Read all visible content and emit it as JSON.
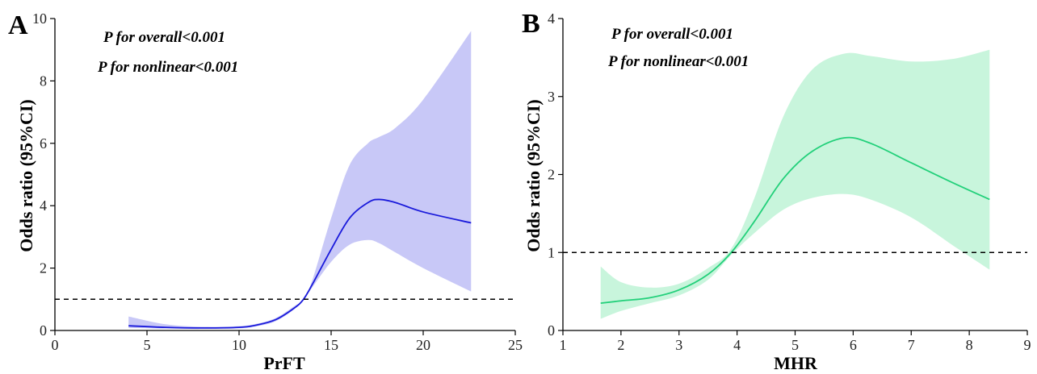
{
  "chart_data": [
    {
      "panel": "A",
      "type": "line",
      "title": "",
      "xlabel": "PrFT",
      "ylabel": "Odds ratio (95%CI)",
      "xlim": [
        0,
        25
      ],
      "ylim": [
        0,
        10
      ],
      "xticks": [
        0,
        5,
        10,
        15,
        20,
        25
      ],
      "yticks": [
        0,
        2,
        4,
        6,
        8,
        10
      ],
      "reference_line": 1,
      "annotations": [
        "P for overall<0.001",
        "P for nonlinear<0.001"
      ],
      "line_color": "#1a1adb",
      "band_color": "#c8c8f7",
      "series": [
        {
          "x": [
            4,
            6,
            8,
            10,
            11,
            12,
            13,
            13.5,
            14,
            15,
            16,
            17,
            17.6,
            18.5,
            20,
            22.6
          ],
          "y": [
            0.15,
            0.1,
            0.08,
            0.1,
            0.18,
            0.35,
            0.72,
            1.0,
            1.5,
            2.6,
            3.6,
            4.1,
            4.2,
            4.1,
            3.8,
            3.45
          ],
          "lower": [
            0.08,
            0.06,
            0.05,
            0.07,
            0.14,
            0.3,
            0.68,
            1.0,
            1.4,
            2.2,
            2.75,
            2.9,
            2.8,
            2.5,
            2.0,
            1.25
          ],
          "upper": [
            0.45,
            0.2,
            0.12,
            0.14,
            0.22,
            0.4,
            0.78,
            1.0,
            1.65,
            3.6,
            5.3,
            6.0,
            6.2,
            6.5,
            7.4,
            9.6
          ]
        }
      ]
    },
    {
      "panel": "B",
      "type": "line",
      "title": "",
      "xlabel": "MHR",
      "ylabel": "Odds ratio (95%CI)",
      "xlim": [
        1,
        9
      ],
      "ylim": [
        0,
        4
      ],
      "xticks": [
        1,
        2,
        3,
        4,
        5,
        6,
        7,
        8,
        9
      ],
      "yticks": [
        0,
        1,
        2,
        3,
        4
      ],
      "reference_line": 1,
      "annotations": [
        "P for overall<0.001",
        "P for nonlinear<0.001"
      ],
      "line_color": "#22d07a",
      "band_color": "#c8f5dc",
      "series": [
        {
          "x": [
            1.65,
            2.0,
            2.5,
            3.0,
            3.5,
            3.9,
            4.3,
            4.8,
            5.3,
            5.85,
            6.3,
            7.0,
            7.7,
            8.35
          ],
          "y": [
            0.35,
            0.38,
            0.42,
            0.52,
            0.72,
            1.0,
            1.4,
            1.95,
            2.3,
            2.47,
            2.4,
            2.15,
            1.9,
            1.68
          ],
          "lower": [
            0.15,
            0.25,
            0.35,
            0.45,
            0.65,
            0.97,
            1.25,
            1.55,
            1.7,
            1.75,
            1.68,
            1.45,
            1.1,
            0.78
          ],
          "upper": [
            0.82,
            0.62,
            0.55,
            0.6,
            0.8,
            1.05,
            1.7,
            2.75,
            3.35,
            3.55,
            3.52,
            3.45,
            3.48,
            3.6
          ]
        }
      ]
    }
  ]
}
